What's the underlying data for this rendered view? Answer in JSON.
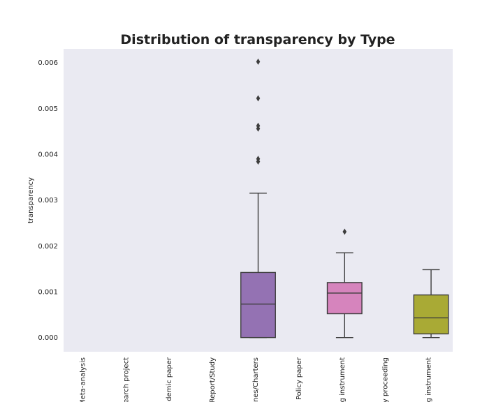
{
  "chart_data": {
    "type": "box",
    "title": "Distribution of transparency by Type",
    "xlabel": "",
    "ylabel": "transparency",
    "ylim": [
      -0.00031,
      0.0063
    ],
    "yticks": [
      "0.000",
      "0.001",
      "0.002",
      "0.003",
      "0.004",
      "0.005",
      "0.006"
    ],
    "ytick_values": [
      0,
      0.001,
      0.002,
      0.003,
      0.004,
      0.005,
      0.006
    ],
    "grid": false,
    "background": "#eaeaf2",
    "categories": [
      "Meta-analysis",
      "earch project",
      "demic paper",
      "Report/Study",
      "nes/Charters",
      "Policy paper",
      "g instrument",
      "y proceeding",
      "g instrument"
    ],
    "boxes": [
      null,
      null,
      null,
      null,
      {
        "whisker_low": 0.0,
        "q1": 0.0,
        "median": 0.00073,
        "q3": 0.00142,
        "whisker_high": 0.00315,
        "outliers": [
          0.0039,
          0.00384,
          0.00462,
          0.00456,
          0.00522,
          0.00602
        ],
        "color": "#9472b3"
      },
      null,
      {
        "whisker_low": 0.0,
        "q1": 0.00052,
        "median": 0.00097,
        "q3": 0.0012,
        "whisker_high": 0.00185,
        "outliers": [
          0.00231
        ],
        "color": "#d684bd"
      },
      null,
      {
        "whisker_low": 0.0,
        "q1": 8e-05,
        "median": 0.00043,
        "q3": 0.00093,
        "whisker_high": 0.00148,
        "outliers": [],
        "color": "#a9aa35"
      }
    ]
  }
}
